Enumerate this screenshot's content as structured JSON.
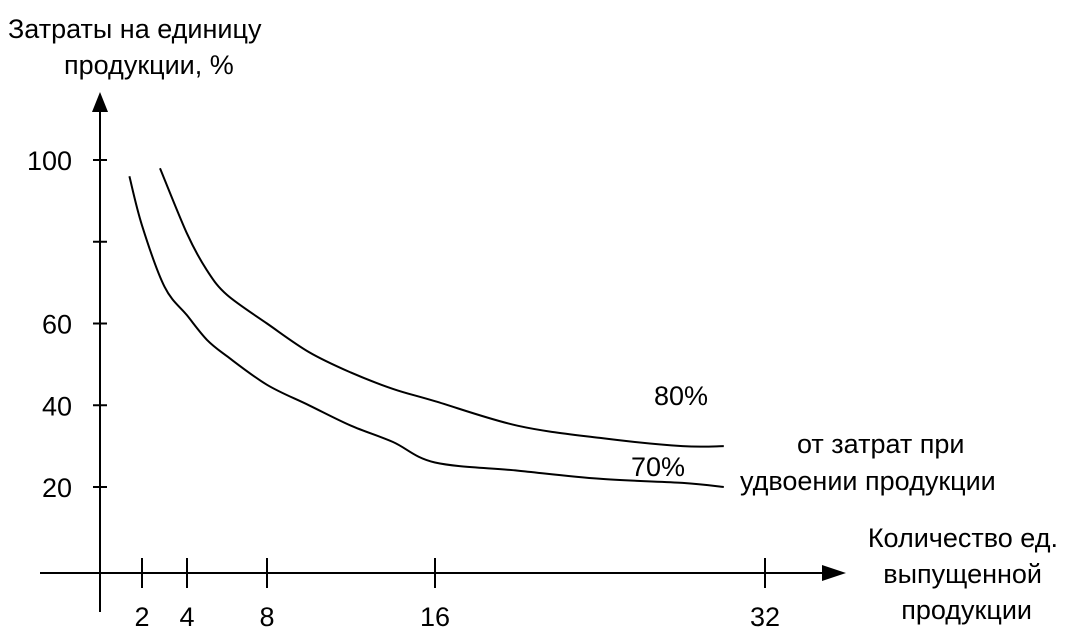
{
  "chart_data": {
    "type": "line",
    "ylabel_line1": "Затраты на единицу",
    "ylabel_line2": "продукции, %",
    "xlabel_line1": "Количество ед.",
    "xlabel_line2": "выпущенной",
    "xlabel_line3": "продукции",
    "x_ticks": [
      2,
      4,
      8,
      16,
      32
    ],
    "y_ticks": [
      20,
      40,
      60,
      100
    ],
    "y_unlabeled_ticks": [
      80
    ],
    "xlim": [
      0,
      32
    ],
    "ylim": [
      0,
      100
    ],
    "grid": false,
    "series": [
      {
        "name": "80%",
        "x": [
          2.8,
          4,
          5,
          6,
          8,
          10,
          12,
          14,
          16,
          20,
          24,
          28,
          30
        ],
        "y": [
          98,
          82,
          73,
          67,
          60,
          53,
          48,
          44,
          41,
          35,
          32,
          30,
          30
        ]
      },
      {
        "name": "70%",
        "x": [
          1.4,
          2,
          3,
          4,
          5,
          6,
          8,
          10,
          12,
          14,
          16,
          20,
          24,
          28,
          30
        ],
        "y": [
          96,
          84,
          69,
          62,
          56,
          52,
          45,
          40,
          35,
          31,
          26,
          24,
          22,
          21,
          20
        ]
      }
    ],
    "annotation_line1": "от затрат при",
    "annotation_line2": "удвоении продукции"
  }
}
